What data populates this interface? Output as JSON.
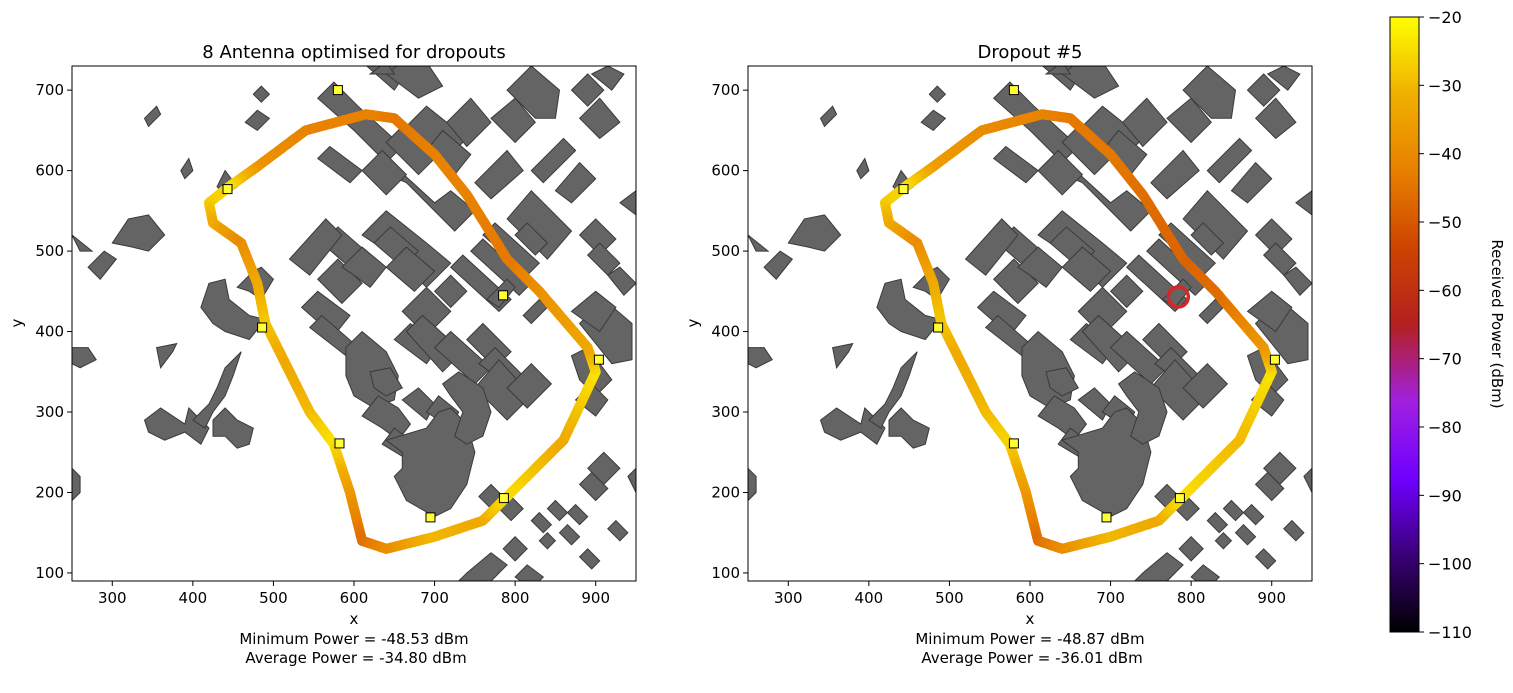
{
  "chart_data": [
    {
      "type": "scatter",
      "title": "8 Antenna optimised for dropouts",
      "xlabel": "x",
      "ylabel": "y",
      "xlim": [
        250,
        950
      ],
      "ylim": [
        90,
        730
      ],
      "xticks": [
        300,
        400,
        500,
        600,
        700,
        800,
        900
      ],
      "yticks": [
        100,
        200,
        300,
        400,
        500,
        600,
        700
      ],
      "stats_line1": "Minimum Power = -48.53 dBm",
      "stats_line2": "Average Power = -34.80 dBm",
      "antennas": [
        [
          580,
          700
        ],
        [
          443,
          577
        ],
        [
          486,
          405
        ],
        [
          785,
          445
        ],
        [
          904,
          365
        ],
        [
          582,
          261
        ],
        [
          695,
          169
        ],
        [
          786,
          193
        ]
      ],
      "route_power": [
        {
          "x": 615,
          "y": 670,
          "p": -42
        },
        {
          "x": 540,
          "y": 650,
          "p": -42
        },
        {
          "x": 480,
          "y": 605,
          "p": -38
        },
        {
          "x": 445,
          "y": 580,
          "p": -25
        },
        {
          "x": 420,
          "y": 560,
          "p": -27
        },
        {
          "x": 425,
          "y": 535,
          "p": -32
        },
        {
          "x": 460,
          "y": 510,
          "p": -40
        },
        {
          "x": 480,
          "y": 460,
          "p": -33
        },
        {
          "x": 490,
          "y": 410,
          "p": -28
        },
        {
          "x": 515,
          "y": 360,
          "p": -33
        },
        {
          "x": 545,
          "y": 300,
          "p": -30
        },
        {
          "x": 575,
          "y": 260,
          "p": -24
        },
        {
          "x": 595,
          "y": 200,
          "p": -36
        },
        {
          "x": 610,
          "y": 140,
          "p": -46
        },
        {
          "x": 640,
          "y": 130,
          "p": -40
        },
        {
          "x": 700,
          "y": 145,
          "p": -30
        },
        {
          "x": 760,
          "y": 165,
          "p": -33
        },
        {
          "x": 790,
          "y": 195,
          "p": -24
        },
        {
          "x": 860,
          "y": 265,
          "p": -33
        },
        {
          "x": 900,
          "y": 350,
          "p": -24
        },
        {
          "x": 890,
          "y": 380,
          "p": -33
        },
        {
          "x": 830,
          "y": 450,
          "p": -38
        },
        {
          "x": 790,
          "y": 490,
          "p": -44
        },
        {
          "x": 740,
          "y": 570,
          "p": -42
        },
        {
          "x": 700,
          "y": 620,
          "p": -42
        },
        {
          "x": 650,
          "y": 665,
          "p": -44
        }
      ]
    },
    {
      "type": "scatter",
      "title": "Dropout #5",
      "xlabel": "x",
      "ylabel": "y",
      "xlim": [
        250,
        950
      ],
      "ylim": [
        90,
        730
      ],
      "xticks": [
        300,
        400,
        500,
        600,
        700,
        800,
        900
      ],
      "yticks": [
        100,
        200,
        300,
        400,
        500,
        600,
        700
      ],
      "stats_line1": "Minimum Power = -48.87 dBm",
      "stats_line2": "Average Power = -36.01 dBm",
      "antennas": [
        [
          580,
          700
        ],
        [
          443,
          577
        ],
        [
          486,
          405
        ],
        [
          904,
          365
        ],
        [
          580,
          261
        ],
        [
          695,
          169
        ],
        [
          786,
          193
        ]
      ],
      "dropout_marker": [
        784,
        443
      ],
      "route_power": [
        {
          "x": 615,
          "y": 670,
          "p": -42
        },
        {
          "x": 540,
          "y": 650,
          "p": -40
        },
        {
          "x": 480,
          "y": 605,
          "p": -36
        },
        {
          "x": 445,
          "y": 580,
          "p": -25
        },
        {
          "x": 420,
          "y": 560,
          "p": -27
        },
        {
          "x": 425,
          "y": 535,
          "p": -32
        },
        {
          "x": 460,
          "y": 510,
          "p": -40
        },
        {
          "x": 480,
          "y": 460,
          "p": -33
        },
        {
          "x": 490,
          "y": 410,
          "p": -28
        },
        {
          "x": 515,
          "y": 360,
          "p": -33
        },
        {
          "x": 545,
          "y": 300,
          "p": -30
        },
        {
          "x": 575,
          "y": 260,
          "p": -26
        },
        {
          "x": 595,
          "y": 200,
          "p": -36
        },
        {
          "x": 610,
          "y": 140,
          "p": -46
        },
        {
          "x": 640,
          "y": 130,
          "p": -40
        },
        {
          "x": 700,
          "y": 145,
          "p": -30
        },
        {
          "x": 760,
          "y": 165,
          "p": -33
        },
        {
          "x": 790,
          "y": 195,
          "p": -24
        },
        {
          "x": 860,
          "y": 265,
          "p": -30
        },
        {
          "x": 900,
          "y": 350,
          "p": -24
        },
        {
          "x": 890,
          "y": 380,
          "p": -36
        },
        {
          "x": 830,
          "y": 450,
          "p": -46
        },
        {
          "x": 790,
          "y": 490,
          "p": -48
        },
        {
          "x": 740,
          "y": 570,
          "p": -46
        },
        {
          "x": 700,
          "y": 620,
          "p": -44
        },
        {
          "x": 650,
          "y": 665,
          "p": -44
        }
      ]
    }
  ],
  "colorbar": {
    "label": "Received Power (dBm)",
    "range": [
      -110,
      -20
    ],
    "ticks": [
      -20,
      -30,
      -40,
      -50,
      -60,
      -70,
      -80,
      -90,
      -100,
      -110
    ],
    "colors": [
      "#000000",
      "#3a0078",
      "#7000ff",
      "#a020e0",
      "#b42020",
      "#cc4400",
      "#e88000",
      "#f0b000",
      "#ffff00"
    ]
  },
  "colors": {
    "building": "#646464",
    "building_edge": "#3a3a3a",
    "antenna": "#ffff33",
    "dropout": "#d62728"
  }
}
